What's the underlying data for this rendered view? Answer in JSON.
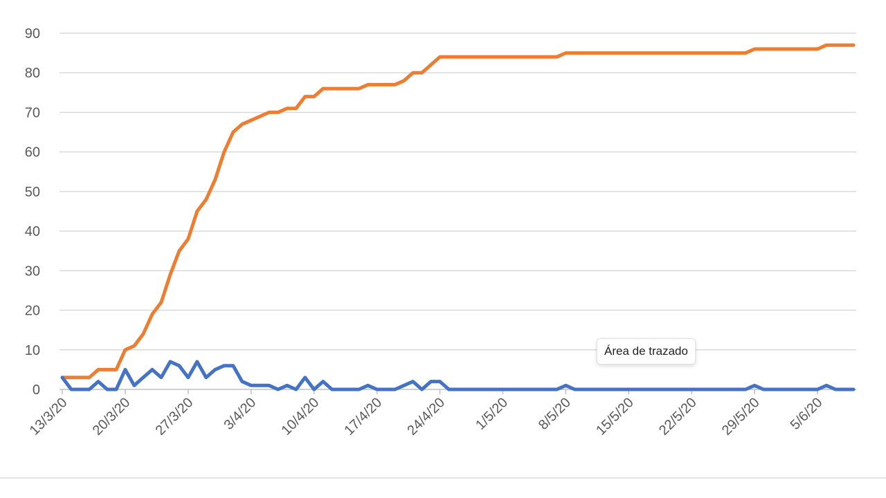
{
  "chart_data": {
    "type": "line",
    "title": "",
    "xlabel": "",
    "ylabel": "",
    "ylim": [
      0,
      90
    ],
    "yticks": [
      0,
      10,
      20,
      30,
      40,
      50,
      60,
      70,
      80,
      90
    ],
    "grid": true,
    "x_tick_labels": [
      "13/3/20",
      "20/3/20",
      "27/3/20",
      "3/4/20",
      "10/4/20",
      "17/4/20",
      "24/4/20",
      "1/5/20",
      "8/5/20",
      "15/5/20",
      "22/5/20",
      "29/5/20",
      "5/6/20"
    ],
    "x": [
      "13/3/20",
      "14/3/20",
      "15/3/20",
      "16/3/20",
      "17/3/20",
      "18/3/20",
      "19/3/20",
      "20/3/20",
      "21/3/20",
      "22/3/20",
      "23/3/20",
      "24/3/20",
      "25/3/20",
      "26/3/20",
      "27/3/20",
      "28/3/20",
      "29/3/20",
      "30/3/20",
      "31/3/20",
      "1/4/20",
      "2/4/20",
      "3/4/20",
      "4/4/20",
      "5/4/20",
      "6/4/20",
      "7/4/20",
      "8/4/20",
      "9/4/20",
      "10/4/20",
      "11/4/20",
      "12/4/20",
      "13/4/20",
      "14/4/20",
      "15/4/20",
      "16/4/20",
      "17/4/20",
      "18/4/20",
      "19/4/20",
      "20/4/20",
      "21/4/20",
      "22/4/20",
      "23/4/20",
      "24/4/20",
      "25/4/20",
      "26/4/20",
      "27/4/20",
      "28/4/20",
      "29/4/20",
      "30/4/20",
      "1/5/20",
      "2/5/20",
      "3/5/20",
      "4/5/20",
      "5/5/20",
      "6/5/20",
      "7/5/20",
      "8/5/20",
      "9/5/20",
      "10/5/20",
      "11/5/20",
      "12/5/20",
      "13/5/20",
      "14/5/20",
      "15/5/20",
      "16/5/20",
      "17/5/20",
      "18/5/20",
      "19/5/20",
      "20/5/20",
      "21/5/20",
      "22/5/20",
      "23/5/20",
      "24/5/20",
      "25/5/20",
      "26/5/20",
      "27/5/20",
      "28/5/20",
      "29/5/20",
      "30/5/20",
      "31/5/20",
      "1/6/20",
      "2/6/20",
      "3/6/20",
      "4/6/20",
      "5/6/20",
      "6/6/20",
      "7/6/20",
      "8/6/20",
      "9/6/20"
    ],
    "series": [
      {
        "color": "#ed7d31",
        "values": [
          3,
          3,
          3,
          3,
          5,
          5,
          5,
          10,
          11,
          14,
          19,
          22,
          29,
          35,
          38,
          45,
          48,
          53,
          60,
          65,
          67,
          68,
          69,
          70,
          70,
          71,
          71,
          74,
          74,
          76,
          76,
          76,
          76,
          76,
          77,
          77,
          77,
          77,
          78,
          80,
          80,
          82,
          84,
          84,
          84,
          84,
          84,
          84,
          84,
          84,
          84,
          84,
          84,
          84,
          84,
          84,
          85,
          85,
          85,
          85,
          85,
          85,
          85,
          85,
          85,
          85,
          85,
          85,
          85,
          85,
          85,
          85,
          85,
          85,
          85,
          85,
          85,
          86,
          86,
          86,
          86,
          86,
          86,
          86,
          86,
          87,
          87,
          87,
          87
        ]
      },
      {
        "color": "#4472c4",
        "values": [
          3,
          0,
          0,
          0,
          2,
          0,
          0,
          5,
          1,
          3,
          5,
          3,
          7,
          6,
          3,
          7,
          3,
          5,
          6,
          6,
          2,
          1,
          1,
          1,
          0,
          1,
          0,
          3,
          0,
          2,
          0,
          0,
          0,
          0,
          1,
          0,
          0,
          0,
          1,
          2,
          0,
          2,
          2,
          0,
          0,
          0,
          0,
          0,
          0,
          0,
          0,
          0,
          0,
          0,
          0,
          0,
          1,
          0,
          0,
          0,
          0,
          0,
          0,
          0,
          0,
          0,
          0,
          0,
          0,
          0,
          0,
          0,
          0,
          0,
          0,
          0,
          0,
          1,
          0,
          0,
          0,
          0,
          0,
          0,
          0,
          1,
          0,
          0,
          0
        ]
      }
    ]
  },
  "tooltip": {
    "text": "Área de trazado"
  }
}
